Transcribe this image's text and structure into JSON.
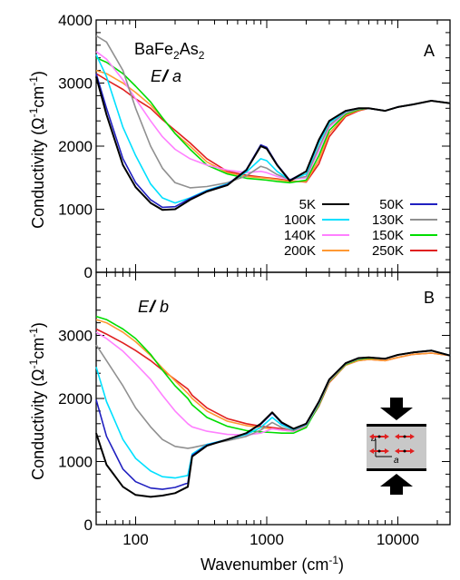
{
  "chart_data": [
    {
      "panel": "A",
      "type": "line",
      "compound": "BaFe2As2",
      "compound_parts": [
        "BaFe",
        "2",
        "As",
        "2"
      ],
      "polarization": "E // a",
      "polarization_parts": [
        "E",
        "/",
        "/",
        " a"
      ],
      "ylabel": "Conductivity (Ω⁻¹cm⁻¹)",
      "ylabel_parts": [
        "Conductivity (Ω",
        "-1",
        "cm",
        "-1",
        ")"
      ],
      "xscale": "log",
      "xlim": [
        50,
        25000
      ],
      "ylim": [
        0,
        4000
      ],
      "yticks": [
        0,
        1000,
        2000,
        3000,
        4000
      ],
      "xticks": [
        100,
        1000,
        10000
      ],
      "legend_position": "lower-right",
      "series": [
        {
          "name": "5K",
          "color": "#000000",
          "x": [
            50,
            60,
            80,
            100,
            130,
            160,
            200,
            260,
            350,
            500,
            700,
            900,
            1000,
            1200,
            1500,
            2000,
            2500,
            3000,
            4000,
            5000,
            6000,
            8000,
            10000,
            13000,
            18000,
            25000
          ],
          "y": [
            3100,
            2500,
            1700,
            1350,
            1100,
            990,
            1000,
            1150,
            1280,
            1380,
            1620,
            2000,
            1960,
            1700,
            1450,
            1600,
            2100,
            2400,
            2560,
            2600,
            2600,
            2560,
            2620,
            2660,
            2720,
            2680
          ]
        },
        {
          "name": "50K",
          "color": "#2020c0",
          "x": [
            50,
            60,
            80,
            100,
            130,
            160,
            200,
            260,
            350,
            500,
            700,
            900,
            1000,
            1200,
            1500,
            2000,
            2500,
            3000,
            4000,
            5000,
            6000,
            8000,
            10000,
            13000,
            18000,
            25000
          ],
          "y": [
            3150,
            2600,
            1800,
            1420,
            1150,
            1030,
            1040,
            1170,
            1290,
            1390,
            1630,
            2020,
            1980,
            1710,
            1460,
            1600,
            2100,
            2400,
            2560,
            2600,
            2600,
            2560,
            2620,
            2660,
            2720,
            2680
          ]
        },
        {
          "name": "100K",
          "color": "#00e0ff",
          "x": [
            50,
            60,
            80,
            100,
            130,
            160,
            200,
            260,
            350,
            500,
            700,
            900,
            1000,
            1200,
            1500,
            2000,
            2500,
            3000,
            4000,
            5000,
            6000,
            8000,
            10000,
            13000,
            18000,
            25000
          ],
          "y": [
            3450,
            3100,
            2300,
            1850,
            1400,
            1180,
            1100,
            1180,
            1300,
            1400,
            1590,
            1800,
            1770,
            1600,
            1460,
            1560,
            2050,
            2370,
            2550,
            2600,
            2600,
            2560,
            2620,
            2660,
            2720,
            2680
          ]
        },
        {
          "name": "130K",
          "color": "#909090",
          "x": [
            50,
            60,
            80,
            100,
            130,
            160,
            200,
            260,
            350,
            500,
            700,
            900,
            1000,
            1200,
            1500,
            2000,
            2500,
            3000,
            4000,
            5000,
            6000,
            8000,
            10000,
            13000,
            18000,
            25000
          ],
          "y": [
            3750,
            3650,
            3200,
            2600,
            2000,
            1650,
            1420,
            1340,
            1360,
            1420,
            1530,
            1680,
            1650,
            1550,
            1470,
            1520,
            1980,
            2330,
            2540,
            2590,
            2600,
            2560,
            2620,
            2660,
            2720,
            2680
          ]
        },
        {
          "name": "140K",
          "color": "#ff80ff",
          "x": [
            50,
            60,
            80,
            100,
            130,
            160,
            200,
            260,
            350,
            500,
            700,
            900,
            1000,
            1200,
            1500,
            2000,
            2500,
            3000,
            4000,
            5000,
            6000,
            8000,
            10000,
            13000,
            18000,
            25000
          ],
          "y": [
            3500,
            3380,
            3050,
            2750,
            2400,
            2150,
            1950,
            1800,
            1700,
            1620,
            1580,
            1600,
            1580,
            1520,
            1470,
            1500,
            1930,
            2300,
            2530,
            2590,
            2600,
            2560,
            2620,
            2660,
            2720,
            2680
          ]
        },
        {
          "name": "150K",
          "color": "#00dd00",
          "x": [
            50,
            60,
            80,
            100,
            130,
            160,
            200,
            260,
            350,
            500,
            700,
            900,
            1000,
            1200,
            1500,
            2000,
            2500,
            3000,
            4000,
            5000,
            6000,
            8000,
            10000,
            13000,
            18000,
            25000
          ],
          "y": [
            3400,
            3330,
            3150,
            2950,
            2700,
            2450,
            2200,
            1950,
            1700,
            1560,
            1490,
            1470,
            1460,
            1440,
            1420,
            1460,
            1850,
            2250,
            2510,
            2580,
            2600,
            2560,
            2620,
            2660,
            2720,
            2680
          ]
        },
        {
          "name": "200K",
          "color": "#ff9933",
          "x": [
            50,
            60,
            80,
            100,
            130,
            160,
            200,
            260,
            350,
            500,
            700,
            900,
            1000,
            1200,
            1500,
            2000,
            2500,
            3000,
            4000,
            5000,
            6000,
            8000,
            10000,
            13000,
            18000,
            25000
          ],
          "y": [
            3200,
            3150,
            3000,
            2850,
            2650,
            2450,
            2200,
            2000,
            1750,
            1580,
            1520,
            1500,
            1490,
            1470,
            1440,
            1440,
            1780,
            2200,
            2490,
            2570,
            2600,
            2560,
            2620,
            2660,
            2720,
            2680
          ]
        },
        {
          "name": "250K",
          "color": "#e02020",
          "x": [
            50,
            60,
            80,
            100,
            130,
            160,
            200,
            260,
            350,
            500,
            700,
            900,
            1000,
            1200,
            1500,
            2000,
            2500,
            3000,
            4000,
            5000,
            6000,
            8000,
            10000,
            13000,
            18000,
            25000
          ],
          "y": [
            3150,
            3050,
            2900,
            2750,
            2600,
            2420,
            2250,
            2050,
            1800,
            1600,
            1540,
            1510,
            1500,
            1480,
            1450,
            1430,
            1720,
            2150,
            2470,
            2560,
            2600,
            2560,
            2620,
            2660,
            2720,
            2680
          ]
        }
      ]
    },
    {
      "panel": "B",
      "type": "line",
      "polarization": "E // b",
      "polarization_parts": [
        "E",
        "/",
        "/",
        " b"
      ],
      "ylabel": "Conductivity (Ω⁻¹cm⁻¹)",
      "ylabel_parts": [
        "Conductivity (Ω",
        "-1",
        "cm",
        "-1",
        ")"
      ],
      "xlabel": "Wavenumber (cm⁻¹)",
      "xlabel_parts": [
        "Wavenumber (cm",
        "-1",
        ")"
      ],
      "xscale": "log",
      "xlim": [
        50,
        25000
      ],
      "ylim": [
        0,
        4000
      ],
      "yticks": [
        0,
        1000,
        2000,
        3000
      ],
      "xticks": [
        100,
        1000,
        10000
      ],
      "xticklabels": [
        "100",
        "1000",
        "10000"
      ],
      "inset": {
        "axis_labels": [
          "b",
          "a"
        ]
      },
      "series": [
        {
          "name": "5K",
          "color": "#000000",
          "x": [
            50,
            60,
            80,
            100,
            130,
            160,
            200,
            250,
            270,
            350,
            500,
            700,
            900,
            1100,
            1300,
            1600,
            2000,
            2500,
            3000,
            4000,
            5000,
            6000,
            8000,
            10000,
            13000,
            18000,
            25000
          ],
          "y": [
            1450,
            950,
            600,
            470,
            440,
            460,
            500,
            600,
            1080,
            1250,
            1350,
            1450,
            1600,
            1780,
            1620,
            1520,
            1600,
            1950,
            2300,
            2560,
            2640,
            2650,
            2630,
            2690,
            2730,
            2760,
            2680
          ]
        },
        {
          "name": "50K",
          "color": "#2020c0",
          "x": [
            50,
            60,
            80,
            100,
            130,
            160,
            200,
            250,
            270,
            350,
            500,
            700,
            900,
            1100,
            1300,
            1600,
            2000,
            2500,
            3000,
            4000,
            5000,
            6000,
            8000,
            10000,
            13000,
            18000,
            25000
          ],
          "y": [
            1980,
            1400,
            880,
            680,
            580,
            560,
            590,
            660,
            1100,
            1260,
            1350,
            1450,
            1590,
            1770,
            1610,
            1520,
            1600,
            1950,
            2300,
            2560,
            2640,
            2650,
            2630,
            2690,
            2730,
            2760,
            2680
          ]
        },
        {
          "name": "100K",
          "color": "#00e0ff",
          "x": [
            50,
            60,
            80,
            100,
            130,
            160,
            200,
            250,
            270,
            350,
            500,
            700,
            900,
            1100,
            1300,
            1600,
            2000,
            2500,
            3000,
            4000,
            5000,
            6000,
            8000,
            10000,
            13000,
            18000,
            25000
          ],
          "y": [
            2500,
            1950,
            1350,
            1050,
            850,
            760,
            740,
            780,
            1120,
            1270,
            1350,
            1430,
            1540,
            1700,
            1580,
            1510,
            1590,
            1940,
            2300,
            2560,
            2640,
            2650,
            2630,
            2690,
            2730,
            2760,
            2680
          ]
        },
        {
          "name": "130K",
          "color": "#909090",
          "x": [
            50,
            60,
            80,
            100,
            130,
            160,
            200,
            250,
            270,
            350,
            500,
            700,
            900,
            1100,
            1300,
            1600,
            2000,
            2500,
            3000,
            4000,
            5000,
            6000,
            8000,
            10000,
            13000,
            18000,
            25000
          ],
          "y": [
            2850,
            2600,
            2200,
            1850,
            1550,
            1350,
            1240,
            1210,
            1220,
            1270,
            1330,
            1400,
            1500,
            1620,
            1540,
            1490,
            1580,
            1930,
            2290,
            2550,
            2630,
            2650,
            2630,
            2690,
            2730,
            2760,
            2680
          ]
        },
        {
          "name": "140K",
          "color": "#ff80ff",
          "x": [
            50,
            60,
            80,
            100,
            130,
            160,
            200,
            250,
            270,
            350,
            500,
            700,
            900,
            1100,
            1300,
            1600,
            2000,
            2500,
            3000,
            4000,
            5000,
            6000,
            8000,
            10000,
            13000,
            18000,
            25000
          ],
          "y": [
            3050,
            2950,
            2750,
            2550,
            2300,
            2050,
            1800,
            1600,
            1550,
            1480,
            1430,
            1420,
            1450,
            1520,
            1500,
            1480,
            1570,
            1920,
            2280,
            2550,
            2630,
            2650,
            2630,
            2690,
            2730,
            2760,
            2680
          ]
        },
        {
          "name": "150K",
          "color": "#00dd00",
          "x": [
            50,
            60,
            80,
            100,
            130,
            160,
            200,
            250,
            270,
            350,
            500,
            700,
            900,
            1100,
            1300,
            1600,
            2000,
            2500,
            3000,
            4000,
            5000,
            6000,
            8000,
            10000,
            13000,
            18000,
            25000
          ],
          "y": [
            3300,
            3250,
            3100,
            2950,
            2700,
            2450,
            2200,
            2000,
            1900,
            1700,
            1560,
            1490,
            1470,
            1460,
            1450,
            1450,
            1540,
            1900,
            2270,
            2540,
            2620,
            2640,
            2630,
            2690,
            2730,
            2760,
            2680
          ]
        },
        {
          "name": "200K",
          "color": "#ff9933",
          "x": [
            50,
            60,
            80,
            100,
            130,
            160,
            200,
            250,
            270,
            350,
            500,
            700,
            900,
            1100,
            1300,
            1600,
            2000,
            2500,
            3000,
            4000,
            5000,
            6000,
            8000,
            10000,
            13000,
            18000,
            25000
          ],
          "y": [
            3250,
            3200,
            3050,
            2900,
            2680,
            2480,
            2280,
            2080,
            2000,
            1800,
            1640,
            1570,
            1540,
            1520,
            1500,
            1480,
            1560,
            1890,
            2260,
            2530,
            2600,
            2620,
            2600,
            2650,
            2700,
            2720,
            2680
          ]
        },
        {
          "name": "250K",
          "color": "#e02020",
          "x": [
            50,
            60,
            80,
            100,
            130,
            160,
            200,
            250,
            270,
            350,
            500,
            700,
            900,
            1100,
            1300,
            1600,
            2000,
            2500,
            3000,
            4000,
            5000,
            6000,
            8000,
            10000,
            13000,
            18000,
            25000
          ],
          "y": [
            3100,
            3020,
            2880,
            2760,
            2600,
            2450,
            2300,
            2150,
            2050,
            1850,
            1680,
            1600,
            1560,
            1540,
            1520,
            1500,
            1560,
            1880,
            2250,
            2530,
            2600,
            2620,
            2600,
            2650,
            2700,
            2720,
            2680
          ]
        }
      ]
    }
  ]
}
